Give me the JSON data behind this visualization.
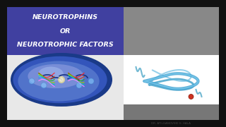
{
  "bg_color": "#111111",
  "slide_bg": "#e8e8e8",
  "title_box_color": "#4040a0",
  "title_line1": "NEUROTROPHINS",
  "title_line2": "OR",
  "title_line3": "NEUROTROPHIC FACTORS",
  "title_color": "#ffffff",
  "title_fontsize": 6.8,
  "gray_top_color": "#888888",
  "gray_bottom_color": "#777777",
  "protein_bg": "#ffffff",
  "credit_text": "DR. ATILGANOVSKI H. HALA",
  "credit_color": "#444444",
  "credit_fontsize": 3.0,
  "brain_base": "#4466cc",
  "brain_mid": "#6688dd",
  "brain_light": "#aabbee",
  "brain_shadow": "#223388"
}
